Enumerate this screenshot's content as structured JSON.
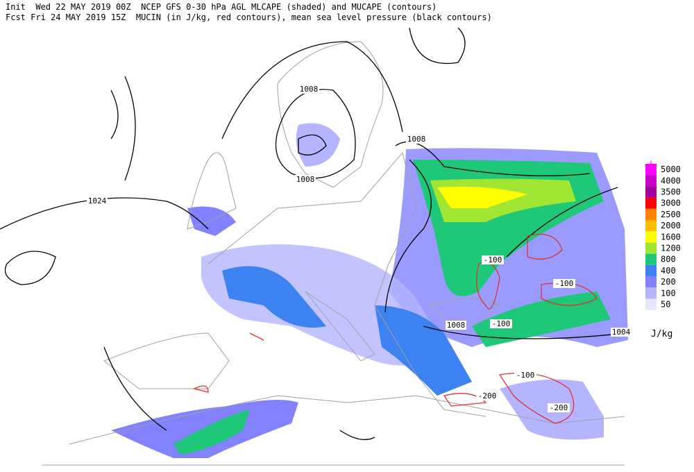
{
  "header": {
    "line1": "Init  Wed 22 MAY 2019 00Z  NCEP GFS 0-30 hPa AGL MLCAPE (shaded) and MUCAPE (contours)",
    "line2": "Fcst Fri 24 MAY 2019 15Z  MUCIN (in J/kg, red contours), mean sea level pressure (black contours)"
  },
  "legend": {
    "unit": "J/kg",
    "levels": [
      {
        "value": 5000,
        "color": "#ff00ff"
      },
      {
        "value": 4000,
        "color": "#c800c8"
      },
      {
        "value": 3500,
        "color": "#a000a0"
      },
      {
        "value": 3000,
        "color": "#ff0000"
      },
      {
        "value": 2500,
        "color": "#ff8200"
      },
      {
        "value": 2000,
        "color": "#ffbe00"
      },
      {
        "value": 1600,
        "color": "#ffff00"
      },
      {
        "value": 1200,
        "color": "#a0e632"
      },
      {
        "value": 800,
        "color": "#1ec878"
      },
      {
        "value": 400,
        "color": "#3c82f0"
      },
      {
        "value": 200,
        "color": "#8282ff"
      },
      {
        "value": 100,
        "color": "#b4b4ff"
      },
      {
        "value": 50,
        "color": "#e6e6ff"
      }
    ]
  },
  "map": {
    "pressure_labels": [
      1008,
      1008,
      1008,
      1024,
      1008,
      1004
    ],
    "cin_labels": [
      -100,
      -100,
      -100,
      -100,
      -200,
      -200
    ]
  }
}
